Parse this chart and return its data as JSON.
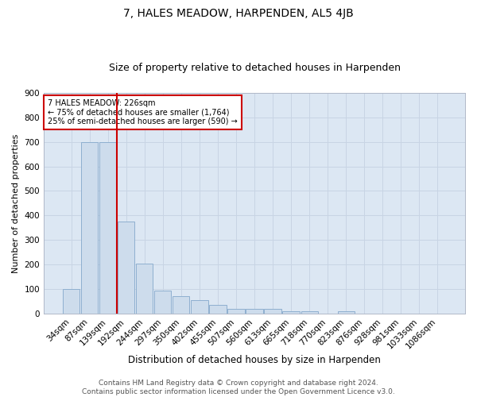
{
  "title": "7, HALES MEADOW, HARPENDEN, AL5 4JB",
  "subtitle": "Size of property relative to detached houses in Harpenden",
  "xlabel": "Distribution of detached houses by size in Harpenden",
  "ylabel": "Number of detached properties",
  "categories": [
    "34sqm",
    "87sqm",
    "139sqm",
    "192sqm",
    "244sqm",
    "297sqm",
    "350sqm",
    "402sqm",
    "455sqm",
    "507sqm",
    "560sqm",
    "613sqm",
    "665sqm",
    "718sqm",
    "770sqm",
    "823sqm",
    "876sqm",
    "928sqm",
    "981sqm",
    "1033sqm",
    "1086sqm"
  ],
  "values": [
    100,
    700,
    700,
    375,
    205,
    95,
    72,
    55,
    35,
    20,
    20,
    20,
    10,
    10,
    0,
    10,
    0,
    0,
    0,
    0,
    0
  ],
  "bar_color": "#cddcec",
  "bar_edge_color": "#8eafd0",
  "grid_color": "#c8d4e4",
  "background_color": "#dce7f3",
  "vline_x_index": 2.5,
  "vline_color": "#cc0000",
  "annotation_text": "7 HALES MEADOW: 226sqm\n← 75% of detached houses are smaller (1,764)\n25% of semi-detached houses are larger (590) →",
  "annotation_box_color": "#ffffff",
  "annotation_box_edge": "#cc0000",
  "footer": "Contains HM Land Registry data © Crown copyright and database right 2024.\nContains public sector information licensed under the Open Government Licence v3.0.",
  "ylim": [
    0,
    900
  ],
  "yticks": [
    0,
    100,
    200,
    300,
    400,
    500,
    600,
    700,
    800,
    900
  ],
  "title_fontsize": 10,
  "subtitle_fontsize": 9,
  "xlabel_fontsize": 8.5,
  "ylabel_fontsize": 8,
  "tick_fontsize": 7.5,
  "footer_fontsize": 6.5
}
